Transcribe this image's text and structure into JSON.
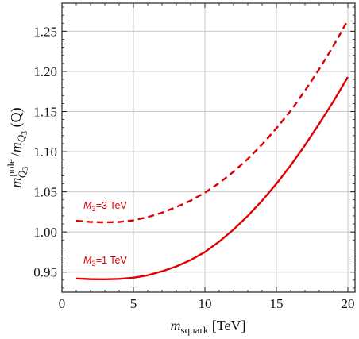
{
  "chart_data": {
    "type": "line",
    "title": "",
    "xlabel": {
      "main": "m",
      "sub": "squark",
      "rest": " [TeV]"
    },
    "ylabel": {
      "m1": "m",
      "sup1": "pole",
      "sub1": "Q",
      "sub1_sub": "3",
      "slash": " /",
      "m2": "m",
      "sub2": "Q",
      "sub2_sub": "3",
      "rest": " (Q)"
    },
    "xlim": [
      0,
      20.5
    ],
    "ylim": [
      0.925,
      1.285
    ],
    "xticks": [
      0,
      5,
      10,
      15,
      20
    ],
    "yticks": [
      0.95,
      1.0,
      1.05,
      1.1,
      1.15,
      1.2,
      1.25
    ],
    "ytick_labels": [
      "0.95",
      "1.00",
      "1.05",
      "1.10",
      "1.15",
      "1.20",
      "1.25"
    ],
    "grid": true,
    "color": "#e00000",
    "x": [
      1,
      2,
      3,
      4,
      5,
      6,
      7,
      8,
      9,
      10,
      11,
      12,
      13,
      14,
      15,
      16,
      17,
      18,
      19,
      20
    ],
    "series": [
      {
        "name": "M3=3 TeV",
        "label": {
          "main": "M",
          "sub": "3",
          "rest": "=3 TeV"
        },
        "dash": "dashed",
        "values": [
          1.014,
          1.0125,
          1.012,
          1.0125,
          1.0145,
          1.0185,
          1.024,
          1.031,
          1.039,
          1.049,
          1.061,
          1.075,
          1.091,
          1.109,
          1.129,
          1.151,
          1.176,
          1.203,
          1.232,
          1.264
        ]
      },
      {
        "name": "M3=1 TeV",
        "label": {
          "main": "M",
          "sub": "3",
          "rest": "=1 TeV"
        },
        "dash": "solid",
        "values": [
          0.942,
          0.9412,
          0.941,
          0.9415,
          0.943,
          0.946,
          0.951,
          0.957,
          0.965,
          0.975,
          0.988,
          1.003,
          1.02,
          1.039,
          1.06,
          1.083,
          1.108,
          1.135,
          1.163,
          1.193
        ]
      }
    ]
  }
}
